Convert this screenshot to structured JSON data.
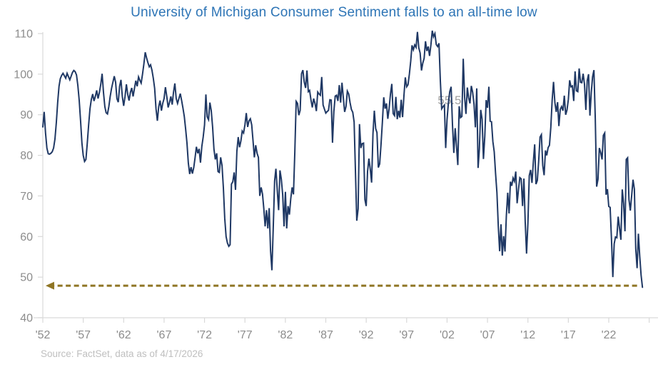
{
  "title": "University of Michigan Consumer Sentiment falls to an all-time low",
  "source": "Source: FactSet, data as of 4/17/2026",
  "colors": {
    "title_blue": "#2E75B6",
    "line_navy": "#1F3864",
    "axis_gray": "#D9D9D9",
    "tick_label_gray": "#8C8C8C",
    "source_gray": "#BFBFBF",
    "arrow_gold": "#8F7524",
    "data_label_gray": "#A0A0A0"
  },
  "chart_data": {
    "type": "line",
    "title": "University of Michigan Consumer Sentiment falls to an all-time low",
    "xlabel": "",
    "ylabel": "",
    "grid": false,
    "legend": "none",
    "ylim": [
      40,
      110
    ],
    "y_ticks": [
      40,
      50,
      60,
      70,
      80,
      90,
      100,
      110
    ],
    "x_ticks": [
      {
        "label": "'52",
        "year": 1952
      },
      {
        "label": "'57",
        "year": 1957
      },
      {
        "label": "'62",
        "year": 1962
      },
      {
        "label": "'67",
        "year": 1967
      },
      {
        "label": "'72",
        "year": 1972
      },
      {
        "label": "'77",
        "year": 1977
      },
      {
        "label": "'82",
        "year": 1982
      },
      {
        "label": "'87",
        "year": 1987
      },
      {
        "label": "'92",
        "year": 1992
      },
      {
        "label": "'97",
        "year": 1997
      },
      {
        "label": "'02",
        "year": 2002
      },
      {
        "label": "'07",
        "year": 2007
      },
      {
        "label": "'12",
        "year": 2012
      },
      {
        "label": "'17",
        "year": 2017
      },
      {
        "label": "'22",
        "year": 2022
      },
      {
        "label": "",
        "year": 2027
      }
    ],
    "series_name": "University of Michigan Consumer Sentiment",
    "x_start": 1952,
    "x_step_per_year": 6,
    "values": [
      87.0,
      90.7,
      85.5,
      81.8,
      80.4,
      80.3,
      80.5,
      80.9,
      81.8,
      84.0,
      88.0,
      93.0,
      97.0,
      98.9,
      99.7,
      100.2,
      99.6,
      99.0,
      100.2,
      99.4,
      98.6,
      99.5,
      100.4,
      100.9,
      100.6,
      99.8,
      97.2,
      93.5,
      88.5,
      83.0,
      80.0,
      78.5,
      79.0,
      83.0,
      87.5,
      91.5,
      93.8,
      95.1,
      93.4,
      94.5,
      96.0,
      94.0,
      95.5,
      97.5,
      100.1,
      95.5,
      92.0,
      90.5,
      90.2,
      92.0,
      94.5,
      96.5,
      98.0,
      99.5,
      98.0,
      94.0,
      93.1,
      97.0,
      98.6,
      94.5,
      92.2,
      94.5,
      97.5,
      95.0,
      93.5,
      95.5,
      96.6,
      94.5,
      96.5,
      98.4,
      97.0,
      99.3,
      98.5,
      97.8,
      100.0,
      102.5,
      105.4,
      104.0,
      102.8,
      101.8,
      102.3,
      101.0,
      99.0,
      96.5,
      91.5,
      88.5,
      92.0,
      93.5,
      91.0,
      92.8,
      94.0,
      96.8,
      94.5,
      91.8,
      93.0,
      94.5,
      92.5,
      95.5,
      97.7,
      94.0,
      92.8,
      94.0,
      95.2,
      93.5,
      91.6,
      89.5,
      86.5,
      83.0,
      78.1,
      75.4,
      77.1,
      75.5,
      77.0,
      79.5,
      82.1,
      80.5,
      81.6,
      78.2,
      82.2,
      84.5,
      87.5,
      95.0,
      89.5,
      88.8,
      93.0,
      91.0,
      87.0,
      81.5,
      79.0,
      80.5,
      76.0,
      75.8,
      79.5,
      77.5,
      72.0,
      64.5,
      60.0,
      58.4,
      57.6,
      58.0,
      72.9,
      73.5,
      75.8,
      71.5,
      81.0,
      84.5,
      82.0,
      83.6,
      86.0,
      85.5,
      87.5,
      90.4,
      87.0,
      88.5,
      89.0,
      87.5,
      83.7,
      79.5,
      82.5,
      80.5,
      79.5,
      70.0,
      72.1,
      70.5,
      67.0,
      62.5,
      66.5,
      62.0,
      67.0,
      56.5,
      51.7,
      62.3,
      73.7,
      76.7,
      71.4,
      66.5,
      76.3,
      74.1,
      70.3,
      62.5,
      71.0,
      62.0,
      67.5,
      65.4,
      69.3,
      72.1,
      70.4,
      80.8,
      93.3,
      92.8,
      89.9,
      91.1,
      100.1,
      101.0,
      98.1,
      96.6,
      100.9,
      95.7,
      96.0,
      93.7,
      91.8,
      94.0,
      92.8,
      90.9,
      95.6,
      95.1,
      94.8,
      99.3,
      92.4,
      91.4,
      90.4,
      90.8,
      91.1,
      93.7,
      93.6,
      83.1,
      90.8,
      94.6,
      94.8,
      93.4,
      97.3,
      93.0,
      97.9,
      94.3,
      90.7,
      92.0,
      95.8,
      95.1,
      93.0,
      91.3,
      90.6,
      88.2,
      76.4,
      63.9,
      66.8,
      87.7,
      81.8,
      82.9,
      83.0,
      69.1,
      67.5,
      76.0,
      79.2,
      76.6,
      73.3,
      85.3,
      91.0,
      86.6,
      85.6,
      77.0,
      77.9,
      82.7,
      88.2,
      94.3,
      91.5,
      92.8,
      89.0,
      91.5,
      95.1,
      97.6,
      90.3,
      89.8,
      94.4,
      88.9,
      91.0,
      89.3,
      93.7,
      89.4,
      94.7,
      99.2,
      96.9,
      97.4,
      100.0,
      103.2,
      107.1,
      106.0,
      107.2,
      106.6,
      110.4,
      106.5,
      105.2,
      100.9,
      102.7,
      103.9,
      108.1,
      105.7,
      106.8,
      104.5,
      107.2,
      110.7,
      109.2,
      110.0,
      107.3,
      106.8,
      107.6,
      98.4,
      91.5,
      92.0,
      92.4,
      81.8,
      88.8,
      93.0,
      95.7,
      96.9,
      87.6,
      80.6,
      86.7,
      82.4,
      77.6,
      92.1,
      89.3,
      89.6,
      103.8,
      94.4,
      90.2,
      96.7,
      94.2,
      92.8,
      97.1,
      95.5,
      92.6,
      86.9,
      96.5,
      76.9,
      81.6,
      91.2,
      88.9,
      79.1,
      84.7,
      93.6,
      91.7,
      96.9,
      88.4,
      88.3,
      83.4,
      80.9,
      75.5,
      70.8,
      62.6,
      56.4,
      63.0,
      55.3,
      60.1,
      56.3,
      65.1,
      70.8,
      65.7,
      73.5,
      72.5,
      74.4,
      73.6,
      76.0,
      68.2,
      71.6,
      74.5,
      74.2,
      67.5,
      74.3,
      63.7,
      55.8,
      63.2,
      75.0,
      76.4,
      73.2,
      78.3,
      82.7,
      72.9,
      73.8,
      78.6,
      84.5,
      85.1,
      77.5,
      75.1,
      81.2,
      80.0,
      81.9,
      82.5,
      86.9,
      93.6,
      98.1,
      93.0,
      90.7,
      93.1,
      87.2,
      91.3,
      92.0,
      91.0,
      94.7,
      90.0,
      91.2,
      93.8,
      98.5,
      96.9,
      97.1,
      93.4,
      100.7,
      95.9,
      95.7,
      101.4,
      98.0,
      97.9,
      100.1,
      97.5,
      91.2,
      98.4,
      100.0,
      89.8,
      95.5,
      99.3,
      101.0,
      89.1,
      72.3,
      74.1,
      81.8,
      80.7,
      79.0,
      84.9,
      85.5,
      70.3,
      71.7,
      67.4,
      67.2,
      59.4,
      50.0,
      58.2,
      59.9,
      59.7,
      64.9,
      62.0,
      59.2,
      71.6,
      68.1,
      61.3,
      79.0,
      79.4,
      69.1,
      66.4,
      70.1,
      74.0,
      71.7,
      57.0,
      52.2,
      60.7,
      55.1,
      50.5,
      47.5
    ],
    "reference_arrow": {
      "value": 47.9,
      "from_year": 2025.5,
      "tip_year": 1952.35,
      "direction": "left",
      "style": "dashed"
    },
    "data_label": {
      "text": "55.5",
      "year": 2000.85,
      "value": 93.6
    }
  }
}
